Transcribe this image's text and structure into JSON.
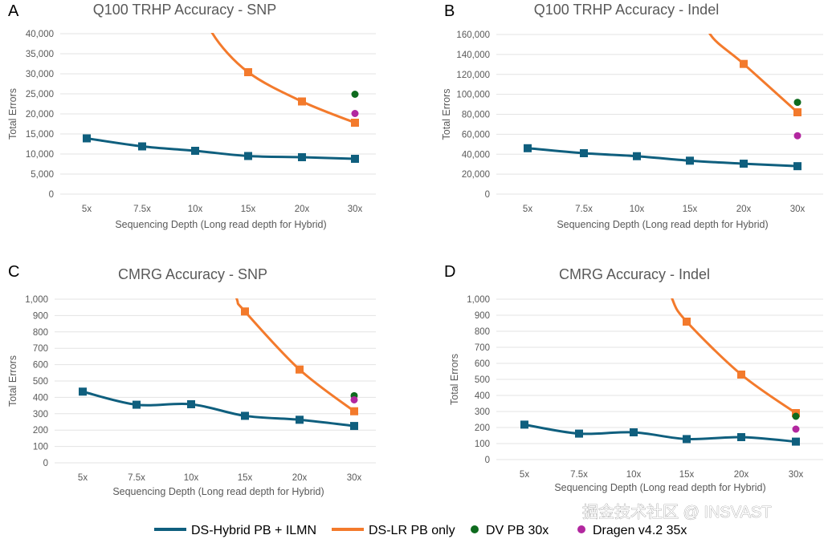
{
  "colors": {
    "hybrid": "#0f5f7e",
    "lr": "#f37a2c",
    "dv": "#0e6b1e",
    "dragen": "#b2279f"
  },
  "legend": [
    {
      "label": "DS-Hybrid PB + ILMN",
      "marker": "line",
      "color": "#0f5f7e"
    },
    {
      "label": "DS-LR PB only",
      "marker": "line",
      "color": "#f37a2c"
    },
    {
      "label": "DV PB 30x",
      "marker": "dot",
      "color": "#0e6b1e"
    },
    {
      "label": "Dragen v4.2 35x",
      "marker": "dot",
      "color": "#b2279f"
    }
  ],
  "watermark": "掘金技术社区 @ INSVAST",
  "chart_data": [
    {
      "panel": "A",
      "type": "line",
      "title": "Q100 TRHP Accuracy - SNP",
      "xlabel": "Sequencing Depth (Long read depth for Hybrid)",
      "ylabel": "Total Errors",
      "categories": [
        "5x",
        "7.5x",
        "10x",
        "15x",
        "20x",
        "30x"
      ],
      "ylim": [
        0,
        40000
      ],
      "yticks": [
        "0",
        "5,000",
        "10,000",
        "15,000",
        "20,000",
        "25,000",
        "30,000",
        "35,000",
        "40,000"
      ],
      "ystep": 5000,
      "grid": true,
      "series": [
        {
          "name": "DS-Hybrid PB + ILMN",
          "values": [
            13900,
            11900,
            10800,
            9500,
            9200,
            8800
          ]
        },
        {
          "name": "DS-LR PB only",
          "values": [
            null,
            null,
            null,
            30400,
            23100,
            17800
          ],
          "note_offscale": true
        }
      ],
      "points": [
        {
          "name": "DV PB 30x",
          "x": "30x",
          "y": 24900
        },
        {
          "name": "Dragen v4.2 35x",
          "x": "30x",
          "y": 20100
        }
      ]
    },
    {
      "panel": "B",
      "type": "line",
      "title": "Q100 TRHP Accuracy - Indel",
      "xlabel": "Sequencing Depth (Long read depth for Hybrid)",
      "ylabel": "Total Errors",
      "categories": [
        "5x",
        "7.5x",
        "10x",
        "15x",
        "20x",
        "30x"
      ],
      "ylim": [
        0,
        160000
      ],
      "yticks": [
        "0",
        "20,000",
        "40,000",
        "60,000",
        "80,000",
        "100,000",
        "120,000",
        "140,000",
        "160,000"
      ],
      "ystep": 20000,
      "grid": true,
      "series": [
        {
          "name": "DS-Hybrid PB + ILMN",
          "values": [
            46000,
            41000,
            38000,
            33500,
            30500,
            28000
          ]
        },
        {
          "name": "DS-LR PB only",
          "values": [
            null,
            null,
            null,
            null,
            130500,
            82000
          ]
        }
      ],
      "points": [
        {
          "name": "DV PB 30x",
          "x": "30x",
          "y": 92000
        },
        {
          "name": "Dragen v4.2 35x",
          "x": "30x",
          "y": 58500
        }
      ]
    },
    {
      "panel": "C",
      "type": "line",
      "title": "CMRG Accuracy - SNP",
      "xlabel": "Sequencing Depth (Long read depth for Hybrid)",
      "ylabel": "Total Errors",
      "categories": [
        "5x",
        "7.5x",
        "10x",
        "15x",
        "20x",
        "30x"
      ],
      "ylim": [
        0,
        1000
      ],
      "yticks": [
        "0",
        "100",
        "200",
        "300",
        "400",
        "500",
        "600",
        "700",
        "800",
        "900",
        "1,000"
      ],
      "ystep": 100,
      "grid": true,
      "series": [
        {
          "name": "DS-Hybrid PB + ILMN",
          "values": [
            435,
            355,
            358,
            287,
            263,
            225
          ]
        },
        {
          "name": "DS-LR PB only",
          "values": [
            null,
            null,
            null,
            925,
            570,
            315
          ]
        }
      ],
      "points": [
        {
          "name": "DV PB 30x",
          "x": "30x",
          "y": 410
        },
        {
          "name": "Dragen v4.2 35x",
          "x": "30x",
          "y": 385
        }
      ]
    },
    {
      "panel": "D",
      "type": "line",
      "title": "CMRG Accuracy - Indel",
      "xlabel": "Sequencing Depth (Long read depth for Hybrid)",
      "ylabel": "Total Errors",
      "categories": [
        "5x",
        "7.5x",
        "10x",
        "15x",
        "20x",
        "30x"
      ],
      "ylim": [
        0,
        1000
      ],
      "yticks": [
        "0",
        "100",
        "200",
        "300",
        "400",
        "500",
        "600",
        "700",
        "800",
        "900",
        "1,000"
      ],
      "ystep": 100,
      "grid": true,
      "series": [
        {
          "name": "DS-Hybrid PB + ILMN",
          "values": [
            218,
            162,
            170,
            128,
            140,
            112
          ]
        },
        {
          "name": "DS-LR PB only",
          "values": [
            null,
            null,
            null,
            860,
            530,
            290
          ]
        }
      ],
      "points": [
        {
          "name": "DV PB 30x",
          "x": "30x",
          "y": 270
        },
        {
          "name": "Dragen v4.2 35x",
          "x": "30x",
          "y": 190
        }
      ]
    }
  ]
}
